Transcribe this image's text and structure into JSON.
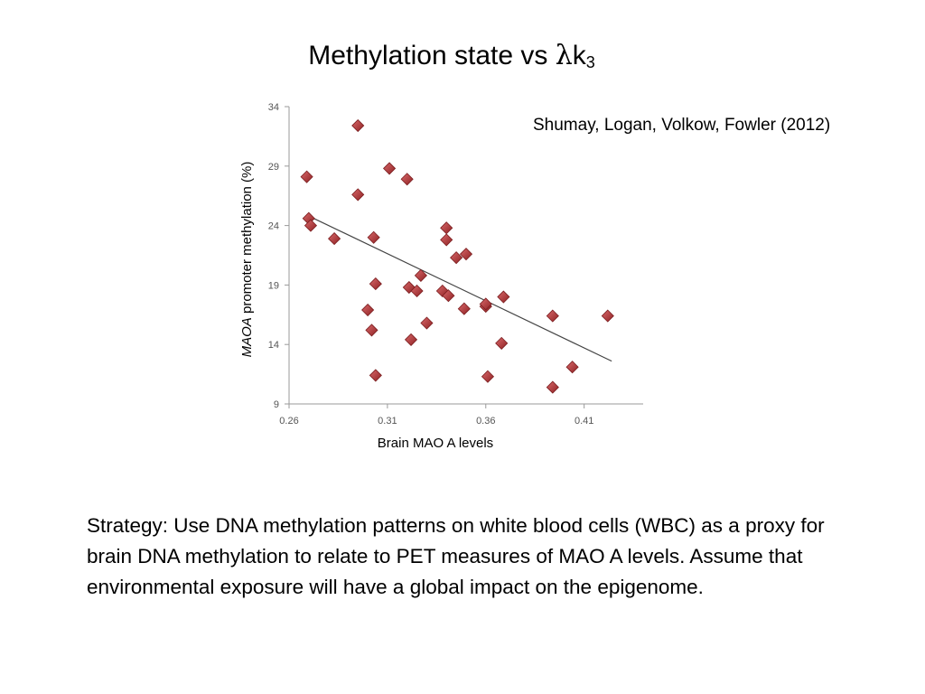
{
  "slide": {
    "title_main": "Methylation state vs ",
    "title_symbol": "λ",
    "title_k": "k",
    "title_sub": "3",
    "citation": "Shumay, Logan, Volkow, Fowler   (2012)",
    "strategy": "Strategy: Use DNA methylation patterns on white blood cells (WBC) as a proxy for  brain DNA methylation to relate to PET measures of MAO A levels.   Assume  that  environmental exposure will have a global impact on the epigenome."
  },
  "chart_data": {
    "type": "scatter",
    "xlabel": "Brain MAO A levels",
    "ylabel_italic": "MAOA",
    "ylabel_rest": " promoter methylation (%)",
    "xlim": [
      0.26,
      0.44
    ],
    "ylim": [
      9,
      34
    ],
    "xticks": [
      "0.26",
      "0.31",
      "0.36",
      "0.41"
    ],
    "yticks": [
      "9",
      "14",
      "19",
      "24",
      "29",
      "34"
    ],
    "grid": false,
    "marker_color": "#b5393b",
    "trendline": {
      "x": [
        0.27,
        0.424
      ],
      "y": [
        24.8,
        12.6
      ]
    },
    "points": [
      {
        "x": 0.269,
        "y": 28.1
      },
      {
        "x": 0.27,
        "y": 24.6
      },
      {
        "x": 0.271,
        "y": 24.0
      },
      {
        "x": 0.283,
        "y": 22.9
      },
      {
        "x": 0.295,
        "y": 32.4
      },
      {
        "x": 0.295,
        "y": 26.6
      },
      {
        "x": 0.3,
        "y": 16.9
      },
      {
        "x": 0.302,
        "y": 15.2
      },
      {
        "x": 0.303,
        "y": 23.0
      },
      {
        "x": 0.304,
        "y": 19.1
      },
      {
        "x": 0.304,
        "y": 11.4
      },
      {
        "x": 0.311,
        "y": 28.8
      },
      {
        "x": 0.32,
        "y": 27.9
      },
      {
        "x": 0.321,
        "y": 18.8
      },
      {
        "x": 0.322,
        "y": 14.4
      },
      {
        "x": 0.325,
        "y": 18.5
      },
      {
        "x": 0.327,
        "y": 19.8
      },
      {
        "x": 0.33,
        "y": 15.8
      },
      {
        "x": 0.338,
        "y": 18.5
      },
      {
        "x": 0.34,
        "y": 23.8
      },
      {
        "x": 0.34,
        "y": 22.8
      },
      {
        "x": 0.341,
        "y": 18.1
      },
      {
        "x": 0.345,
        "y": 21.3
      },
      {
        "x": 0.349,
        "y": 17.0
      },
      {
        "x": 0.35,
        "y": 21.6
      },
      {
        "x": 0.36,
        "y": 17.2
      },
      {
        "x": 0.36,
        "y": 17.4
      },
      {
        "x": 0.361,
        "y": 11.3
      },
      {
        "x": 0.368,
        "y": 14.1
      },
      {
        "x": 0.369,
        "y": 18.0
      },
      {
        "x": 0.394,
        "y": 16.4
      },
      {
        "x": 0.394,
        "y": 10.4
      },
      {
        "x": 0.404,
        "y": 12.1
      },
      {
        "x": 0.422,
        "y": 16.4
      }
    ]
  }
}
